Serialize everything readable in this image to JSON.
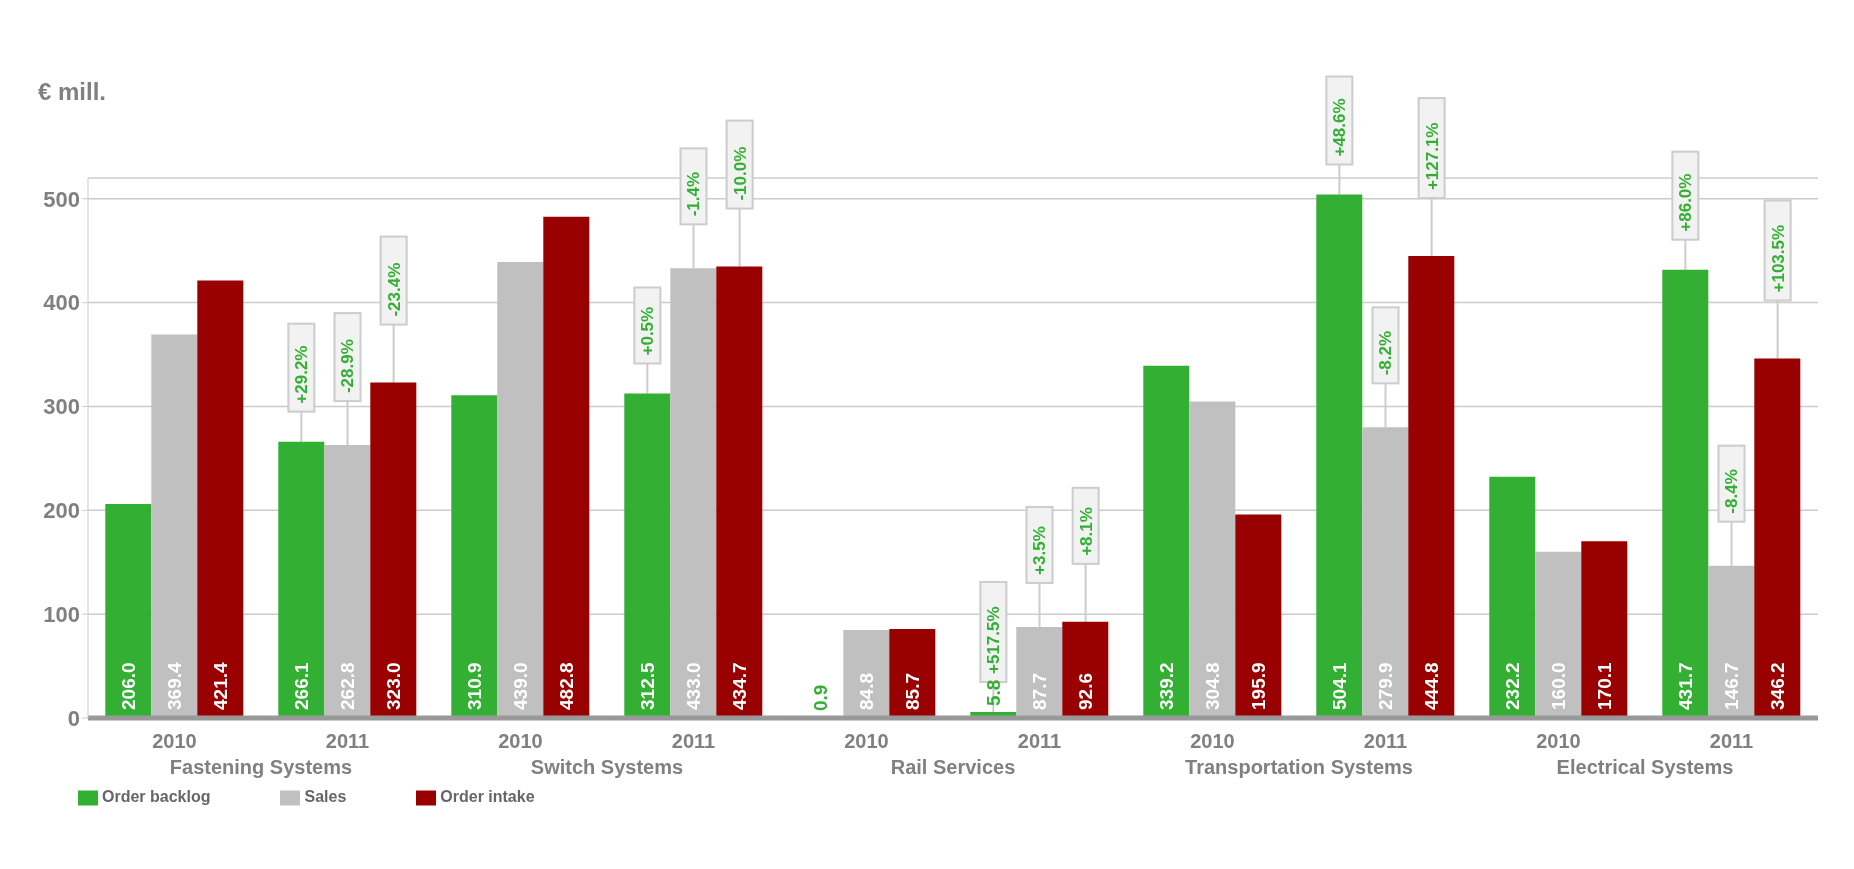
{
  "chart_data": {
    "type": "bar",
    "ylabel": "€ mill.",
    "categories": [
      "2010",
      "2011",
      "2010",
      "2011",
      "2010",
      "2011",
      "2010",
      "2011",
      "2010",
      "2011"
    ],
    "series": [
      {
        "name": "Order backlog",
        "color": "#33b033",
        "values": [
          206.0,
          266.1,
          310.9,
          312.5,
          0.9,
          5.8,
          339.2,
          504.1,
          232.2,
          431.7
        ],
        "value_labels": [
          "206.0",
          "266.1",
          "310.9",
          "312.5",
          "0.9",
          "5.8",
          "339.2",
          "504.1",
          "232.2",
          "431.7"
        ]
      },
      {
        "name": "Sales",
        "color": "#c0c0c0",
        "values": [
          369.4,
          262.8,
          439.0,
          433.0,
          84.8,
          87.7,
          304.8,
          279.9,
          160.0,
          146.7
        ],
        "value_labels": [
          "369.4",
          "262.8",
          "439.0",
          "433.0",
          "84.8",
          "87.7",
          "304.8",
          "279.9",
          "160.0",
          "146.7"
        ]
      },
      {
        "name": "Order intake",
        "color": "#990000",
        "values": [
          421.4,
          323.0,
          482.8,
          434.7,
          85.7,
          92.6,
          195.9,
          444.8,
          170.1,
          346.2
        ],
        "value_labels": [
          "421.4",
          "323.0",
          "482.8",
          "434.7",
          "85.7",
          "92.6",
          "195.9",
          "444.8",
          "170.1",
          "346.2"
        ]
      }
    ],
    "annotations": [
      "Fastening Systems",
      "Switch Systems",
      "Rail Services",
      "Transportation Systems",
      "Electrical Systems",
      {
        "text": "+29.2%",
        "y": 266.1
      },
      {
        "text": "-28.9%",
        "y": 262.8
      },
      {
        "text": "-23.4%",
        "y": 323.0
      },
      {
        "text": "+0.5%",
        "y": 312.5
      },
      {
        "text": "-1.4%",
        "y": 433.0
      },
      {
        "text": "-10.0%",
        "y": 434.7
      },
      {
        "text": "+517.5%",
        "y": 5.8
      },
      {
        "text": "+3.5%",
        "y": 87.7
      },
      {
        "text": "+8.1%",
        "y": 92.6
      },
      {
        "text": "+48.6%",
        "y": 504.1
      },
      {
        "text": "-8.2%",
        "y": 279.9
      },
      {
        "text": "+127.1%",
        "y": 444.8
      },
      {
        "text": "+86.0%",
        "y": 431.7
      },
      {
        "text": "-8.4%",
        "y": 146.7
      },
      {
        "text": "+103.5%",
        "y": 346.2
      }
    ],
    "ylim": [
      0,
      520
    ],
    "yticks": [
      0,
      100,
      200,
      300,
      400,
      500
    ],
    "grid": "y",
    "legend": "bottom left"
  }
}
